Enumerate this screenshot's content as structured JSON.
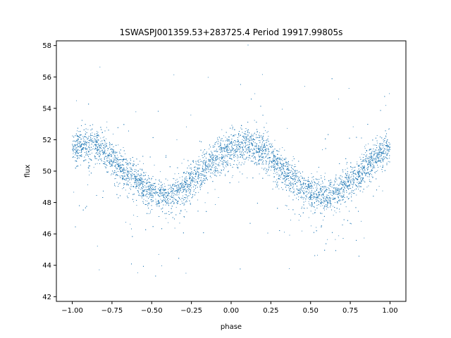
{
  "chart_data": {
    "type": "scatter",
    "title": "1SWASPJ001359.53+283725.4 Period 19917.99805s",
    "xlabel": "phase",
    "ylabel": "flux",
    "xlim": [
      -1.1,
      1.1
    ],
    "ylim": [
      41.7,
      58.3
    ],
    "x_ticks": [
      -1.0,
      -0.75,
      -0.5,
      -0.25,
      0.0,
      0.25,
      0.5,
      0.75,
      1.0
    ],
    "x_tick_labels": [
      "−1.00",
      "−0.75",
      "−0.50",
      "−0.25",
      "0.00",
      "0.25",
      "0.50",
      "0.75",
      "1.00"
    ],
    "y_ticks": [
      42,
      44,
      46,
      48,
      50,
      52,
      54,
      56,
      58
    ],
    "y_tick_labels": [
      "42",
      "44",
      "46",
      "48",
      "50",
      "52",
      "54",
      "56",
      "58"
    ],
    "grid": false,
    "marker_color": "#1f77b4",
    "series": [
      {
        "trend_model": "flux ≈ 50.0 + 1.55·cos(2π·(phase − 0.08))",
        "x": [
          -1.0,
          -0.95,
          -0.9,
          -0.85,
          -0.8,
          -0.75,
          -0.7,
          -0.65,
          -0.6,
          -0.55,
          -0.5,
          -0.45,
          -0.4,
          -0.35,
          -0.3,
          -0.25,
          -0.2,
          -0.15,
          -0.1,
          -0.05,
          0.0,
          0.05,
          0.1,
          0.15,
          0.2,
          0.25,
          0.3,
          0.35,
          0.4,
          0.45,
          0.5,
          0.55,
          0.6,
          0.65,
          0.7,
          0.75,
          0.8,
          0.85,
          0.9,
          0.95,
          1.0
        ],
        "y": [
          51.3,
          51.6,
          51.6,
          51.6,
          51.3,
          50.8,
          50.3,
          49.8,
          49.4,
          49.0,
          48.6,
          48.4,
          48.4,
          48.6,
          48.9,
          49.3,
          49.8,
          50.3,
          50.8,
          51.2,
          51.4,
          51.6,
          51.6,
          51.5,
          51.3,
          50.9,
          50.4,
          49.9,
          49.4,
          49.0,
          48.7,
          48.4,
          48.4,
          48.5,
          48.9,
          49.3,
          49.8,
          50.3,
          50.8,
          51.2,
          51.4
        ]
      }
    ]
  }
}
